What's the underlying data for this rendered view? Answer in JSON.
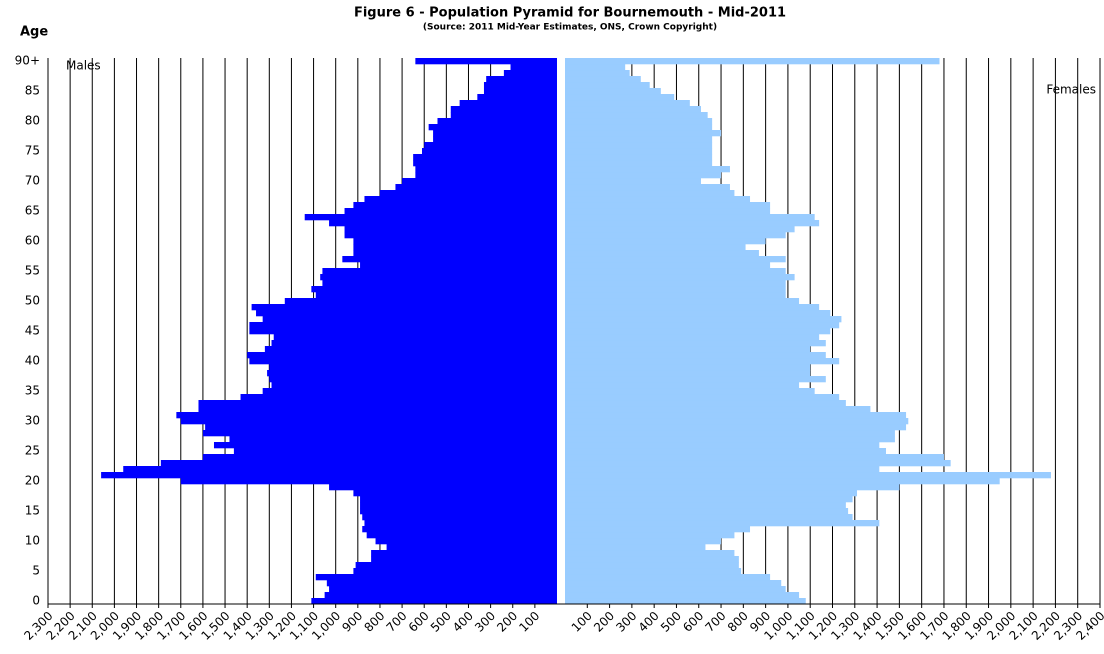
{
  "chart_data": {
    "type": "pyramid",
    "title": "Figure 6 - Population Pyramid for Bournemouth - Mid-2011",
    "subtitle": "(Source: 2011 Mid-Year Estimates, ONS, Crown Copyright)",
    "y_label": "Age",
    "categories": [
      "0",
      null,
      null,
      null,
      null,
      "5",
      null,
      null,
      null,
      null,
      "10",
      null,
      null,
      null,
      null,
      "15",
      null,
      null,
      null,
      null,
      "20",
      null,
      null,
      null,
      null,
      "25",
      null,
      null,
      null,
      null,
      "30",
      null,
      null,
      null,
      null,
      "35",
      null,
      null,
      null,
      null,
      "40",
      null,
      null,
      null,
      null,
      "45",
      null,
      null,
      null,
      null,
      "50",
      null,
      null,
      null,
      null,
      "55",
      null,
      null,
      null,
      null,
      "60",
      null,
      null,
      null,
      null,
      "65",
      null,
      null,
      null,
      null,
      "70",
      null,
      null,
      null,
      null,
      "75",
      null,
      null,
      null,
      null,
      "80",
      null,
      null,
      null,
      null,
      "85",
      null,
      null,
      null,
      null,
      "90+"
    ],
    "grid": true,
    "series": [
      {
        "name": "Males",
        "color": "#0000ff",
        "side": "left",
        "xlim": [
          0,
          2300
        ],
        "xticks": [
          100,
          200,
          300,
          400,
          500,
          600,
          700,
          800,
          900,
          {
            "value": 1000,
            "label": "1,000"
          },
          {
            "value": 1100,
            "label": "1,100"
          },
          {
            "value": 1200,
            "label": "1,200"
          },
          {
            "value": 1300,
            "label": "1,300"
          },
          {
            "value": 1400,
            "label": "1,400"
          },
          {
            "value": 1500,
            "label": "1,500"
          },
          {
            "value": 1600,
            "label": "1,600"
          },
          {
            "value": 1700,
            "label": "1,700"
          },
          {
            "value": 1800,
            "label": "1,800"
          },
          {
            "value": 1900,
            "label": "1,900"
          },
          {
            "value": 2000,
            "label": "2,000"
          },
          {
            "value": 2100,
            "label": "2,100"
          },
          {
            "value": 2200,
            "label": "2,200"
          },
          {
            "value": 2300,
            "label": "2,300"
          }
        ],
        "values": [
          1110,
          1050,
          1030,
          1040,
          1090,
          920,
          910,
          840,
          840,
          770,
          820,
          860,
          880,
          870,
          880,
          890,
          890,
          890,
          920,
          1030,
          1700,
          2060,
          1960,
          1790,
          1600,
          1460,
          1550,
          1480,
          1600,
          1590,
          1700,
          1720,
          1620,
          1620,
          1430,
          1330,
          1290,
          1300,
          1310,
          1300,
          1390,
          1400,
          1320,
          1290,
          1280,
          1390,
          1390,
          1330,
          1360,
          1380,
          1230,
          1090,
          1110,
          1060,
          1070,
          1060,
          890,
          970,
          920,
          920,
          920,
          960,
          960,
          1030,
          1140,
          960,
          920,
          870,
          800,
          730,
          700,
          640,
          640,
          650,
          650,
          610,
          600,
          560,
          560,
          580,
          540,
          480,
          480,
          440,
          360,
          330,
          330,
          320,
          240,
          210,
          640
        ]
      },
      {
        "name": "Females",
        "color": "#99ccff",
        "side": "right",
        "xlim": [
          0,
          2400
        ],
        "xticks": [
          100,
          200,
          300,
          400,
          500,
          600,
          700,
          800,
          900,
          {
            "value": 1000,
            "label": "1,000"
          },
          {
            "value": 1100,
            "label": "1,100"
          },
          {
            "value": 1200,
            "label": "1,200"
          },
          {
            "value": 1300,
            "label": "1,300"
          },
          {
            "value": 1400,
            "label": "1,400"
          },
          {
            "value": 1500,
            "label": "1,500"
          },
          {
            "value": 1600,
            "label": "1,600"
          },
          {
            "value": 1700,
            "label": "1,700"
          },
          {
            "value": 1800,
            "label": "1,800"
          },
          {
            "value": 1900,
            "label": "1,900"
          },
          {
            "value": 2000,
            "label": "2,000"
          },
          {
            "value": 2100,
            "label": "2,100"
          },
          {
            "value": 2200,
            "label": "2,200"
          },
          {
            "value": 2300,
            "label": "2,300"
          },
          {
            "value": 2400,
            "label": "2,400"
          }
        ],
        "values": [
          1080,
          1050,
          990,
          970,
          920,
          790,
          780,
          780,
          760,
          630,
          700,
          760,
          830,
          1410,
          1290,
          1270,
          1260,
          1290,
          1310,
          1500,
          1950,
          2180,
          1410,
          1730,
          1700,
          1440,
          1410,
          1480,
          1480,
          1530,
          1540,
          1530,
          1370,
          1260,
          1230,
          1120,
          1050,
          1170,
          1100,
          1100,
          1230,
          1170,
          1100,
          1170,
          1140,
          1190,
          1230,
          1240,
          1190,
          1140,
          1050,
          990,
          990,
          990,
          1030,
          990,
          920,
          990,
          870,
          810,
          900,
          990,
          1030,
          1140,
          1120,
          920,
          920,
          830,
          760,
          740,
          610,
          700,
          740,
          660,
          660,
          660,
          660,
          660,
          700,
          660,
          660,
          640,
          610,
          560,
          490,
          430,
          380,
          340,
          290,
          270,
          1680
        ]
      }
    ]
  }
}
